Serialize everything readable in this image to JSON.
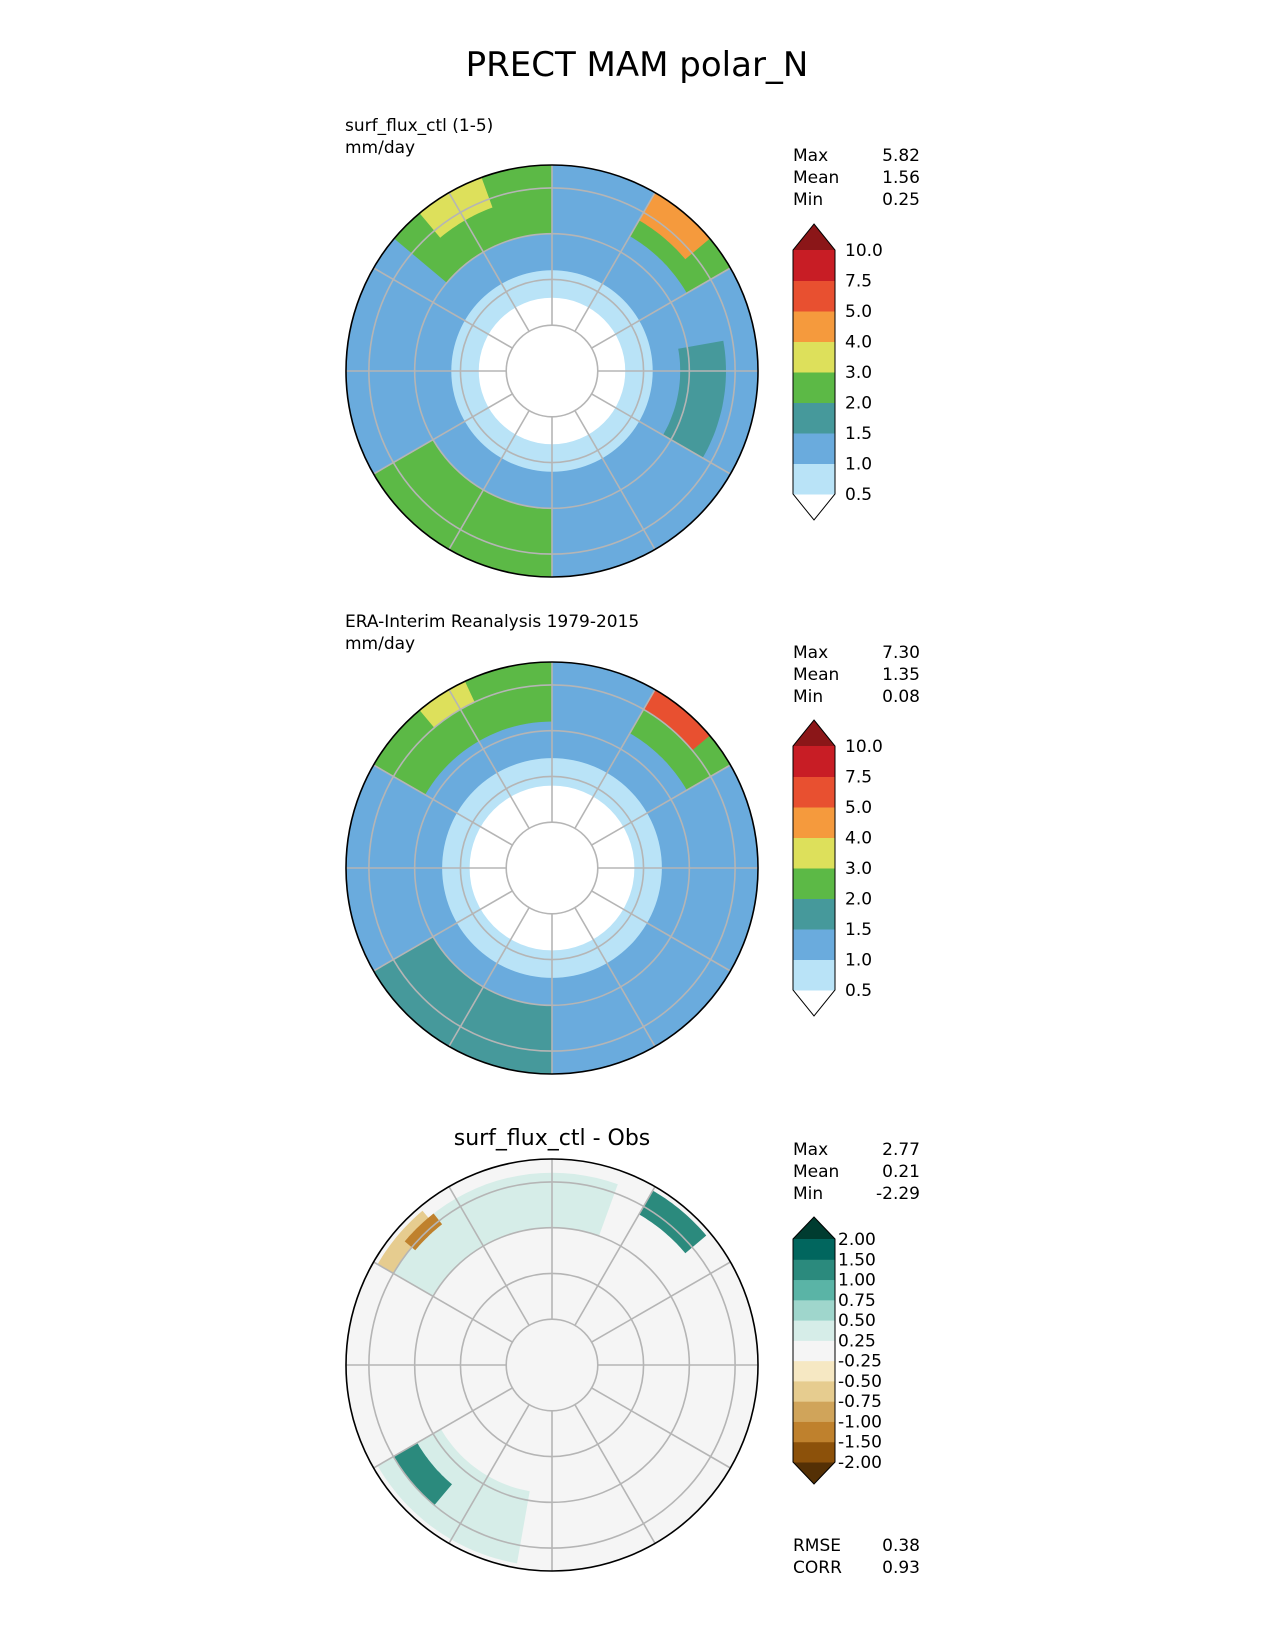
{
  "figure": {
    "title": "PRECT MAM polar_N"
  },
  "chart_data": [
    {
      "type": "heatmap",
      "projection": "north polar stereographic",
      "name": "surf_flux_ctl (1-5)",
      "units": "mm/day",
      "stats": {
        "max": "5.82",
        "mean": "1.56",
        "min": "0.25"
      },
      "stat_labels": {
        "max": "Max",
        "mean": "Mean",
        "min": "Min"
      },
      "colorbar": {
        "levels": [
          "0.5",
          "1.0",
          "1.5",
          "2.0",
          "3.0",
          "4.0",
          "5.0",
          "7.5",
          "10.0"
        ],
        "colors": [
          "#ffffff",
          "#b9e3f7",
          "#6aabdd",
          "#46999b",
          "#5cb946",
          "#dde05b",
          "#f59a3d",
          "#e85030",
          "#c81d25",
          "#8b1618"
        ],
        "extend": "both"
      },
      "regions": [
        {
          "value": 1.2,
          "lat": [
            45,
            90
          ],
          "lon": [
            0,
            360
          ]
        },
        {
          "value": 0.7,
          "lat": [
            68,
            90
          ],
          "lon": [
            0,
            360
          ]
        },
        {
          "value": 0.3,
          "lat": [
            74,
            90
          ],
          "lon": [
            0,
            360
          ]
        },
        {
          "value": 2.5,
          "lat": [
            45,
            56
          ],
          "lon": [
            120,
            150
          ]
        },
        {
          "value": 4.5,
          "lat": [
            45,
            52
          ],
          "lon": [
            130,
            150
          ]
        },
        {
          "value": 2.5,
          "lat": [
            45,
            60
          ],
          "lon": [
            180,
            230
          ]
        },
        {
          "value": 2.5,
          "lat": [
            45,
            60
          ],
          "lon": [
            300,
            360
          ]
        },
        {
          "value": 1.8,
          "lat": [
            52,
            62
          ],
          "lon": [
            60,
            100
          ]
        },
        {
          "value": 3.5,
          "lat": [
            45,
            52
          ],
          "lon": [
            200,
            220
          ]
        }
      ]
    },
    {
      "type": "heatmap",
      "projection": "north polar stereographic",
      "name": "ERA-Interim Reanalysis 1979-2015",
      "units": "mm/day",
      "stats": {
        "max": "7.30",
        "mean": "1.35",
        "min": "0.08"
      },
      "stat_labels": {
        "max": "Max",
        "mean": "Mean",
        "min": "Min"
      },
      "colorbar": {
        "levels": [
          "0.5",
          "1.0",
          "1.5",
          "2.0",
          "3.0",
          "4.0",
          "5.0",
          "7.5",
          "10.0"
        ],
        "colors": [
          "#ffffff",
          "#b9e3f7",
          "#6aabdd",
          "#46999b",
          "#5cb946",
          "#dde05b",
          "#f59a3d",
          "#e85030",
          "#c81d25",
          "#8b1618"
        ],
        "extend": "both"
      },
      "regions": [
        {
          "value": 1.2,
          "lat": [
            45,
            90
          ],
          "lon": [
            0,
            360
          ]
        },
        {
          "value": 0.7,
          "lat": [
            66,
            90
          ],
          "lon": [
            0,
            360
          ]
        },
        {
          "value": 0.3,
          "lat": [
            72,
            90
          ],
          "lon": [
            0,
            360
          ]
        },
        {
          "value": 2.5,
          "lat": [
            45,
            56
          ],
          "lon": [
            120,
            150
          ]
        },
        {
          "value": 5.0,
          "lat": [
            45,
            50
          ],
          "lon": [
            130,
            150
          ]
        },
        {
          "value": 2.5,
          "lat": [
            45,
            58
          ],
          "lon": [
            180,
            240
          ]
        },
        {
          "value": 1.8,
          "lat": [
            45,
            60
          ],
          "lon": [
            300,
            360
          ]
        },
        {
          "value": 3.5,
          "lat": [
            45,
            50
          ],
          "lon": [
            205,
            220
          ]
        }
      ]
    },
    {
      "type": "heatmap",
      "projection": "north polar stereographic",
      "name": "surf_flux_ctl - Obs",
      "units": "",
      "stats": {
        "max": "2.77",
        "mean": "0.21",
        "min": "-2.29"
      },
      "stat_labels": {
        "max": "Max",
        "mean": "Mean",
        "min": "Min"
      },
      "metrics": {
        "rmse": "0.38",
        "corr": "0.93"
      },
      "metric_labels": {
        "rmse": "RMSE",
        "corr": "CORR"
      },
      "colorbar": {
        "levels": [
          "-2.00",
          "-1.50",
          "-1.00",
          "-0.75",
          "-0.50",
          "-0.25",
          "0.25",
          "0.50",
          "0.75",
          "1.00",
          "1.50",
          "2.00"
        ],
        "colors": [
          "#543005",
          "#8c510a",
          "#bf812d",
          "#d0a45a",
          "#e6cc8f",
          "#f6e8c3",
          "#f5f5f5",
          "#d6ede8",
          "#9fd6cc",
          "#5ab4a6",
          "#2b8a7d",
          "#01665e",
          "#003c30"
        ],
        "extend": "both"
      },
      "regions": [
        {
          "value": 0.0,
          "lat": [
            45,
            90
          ],
          "lon": [
            0,
            360
          ]
        },
        {
          "value": 0.4,
          "lat": [
            48,
            60
          ],
          "lon": [
            160,
            240
          ]
        },
        {
          "value": 0.4,
          "lat": [
            46,
            62
          ],
          "lon": [
            300,
            350
          ]
        },
        {
          "value": 1.2,
          "lat": [
            46,
            52
          ],
          "lon": [
            130,
            150
          ]
        },
        {
          "value": -0.6,
          "lat": [
            46,
            50
          ],
          "lon": [
            220,
            240
          ]
        },
        {
          "value": -1.2,
          "lat": [
            48,
            51
          ],
          "lon": [
            218,
            230
          ]
        },
        {
          "value": 1.2,
          "lat": [
            50,
            56
          ],
          "lon": [
            300,
            320
          ]
        }
      ]
    }
  ]
}
